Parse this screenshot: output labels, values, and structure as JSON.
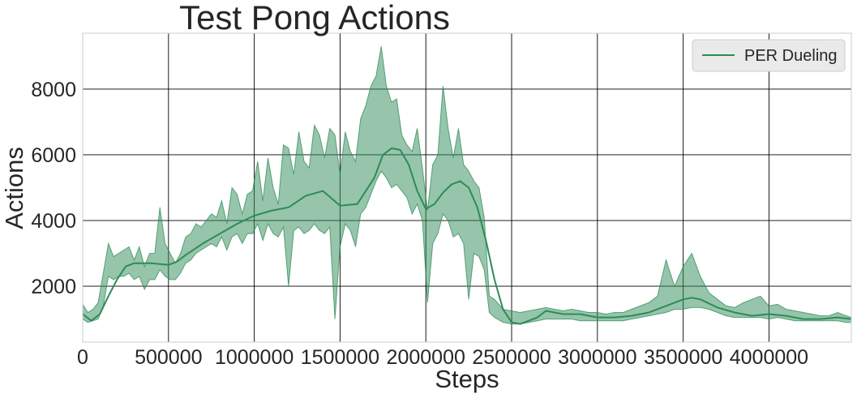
{
  "chart_data": {
    "type": "line",
    "title": "Test Pong Actions",
    "xlabel": "Steps",
    "ylabel": "Actions",
    "xlim": [
      0,
      4480000
    ],
    "ylim": [
      300,
      9700
    ],
    "xticks": [
      0,
      500000,
      1000000,
      1500000,
      2000000,
      2500000,
      3000000,
      3500000,
      4000000
    ],
    "yticks": [
      2000,
      4000,
      6000,
      8000
    ],
    "grid": true,
    "legend": {
      "position": "top-right"
    },
    "series": [
      {
        "name": "PER Dueling",
        "color": "#2e8b57",
        "smoothed": {
          "x": [
            0,
            50000,
            100000,
            150000,
            200000,
            250000,
            300000,
            400000,
            500000,
            550000,
            600000,
            700000,
            800000,
            900000,
            1000000,
            1100000,
            1200000,
            1300000,
            1400000,
            1500000,
            1600000,
            1700000,
            1750000,
            1800000,
            1850000,
            1900000,
            1950000,
            2000000,
            2050000,
            2100000,
            2150000,
            2200000,
            2250000,
            2300000,
            2350000,
            2400000,
            2450000,
            2500000,
            2550000,
            2600000,
            2650000,
            2700000,
            2800000,
            2900000,
            3000000,
            3100000,
            3200000,
            3300000,
            3400000,
            3500000,
            3550000,
            3600000,
            3700000,
            3800000,
            3900000,
            4000000,
            4100000,
            4200000,
            4300000,
            4400000,
            4480000
          ],
          "y": [
            1150,
            950,
            1150,
            1700,
            2200,
            2600,
            2700,
            2700,
            2650,
            2750,
            2950,
            3300,
            3600,
            3900,
            4150,
            4300,
            4400,
            4750,
            4900,
            4450,
            4500,
            5300,
            6000,
            6200,
            6150,
            5700,
            4900,
            4350,
            4500,
            4850,
            5100,
            5200,
            5000,
            4400,
            3400,
            2200,
            1300,
            900,
            850,
            950,
            1050,
            1250,
            1150,
            1150,
            1050,
            1050,
            1100,
            1200,
            1400,
            1600,
            1650,
            1600,
            1350,
            1200,
            1100,
            1150,
            1100,
            1000,
            1000,
            1050,
            1000
          ]
        },
        "band": {
          "x": [
            0,
            30000,
            60000,
            90000,
            120000,
            150000,
            180000,
            210000,
            240000,
            270000,
            300000,
            330000,
            360000,
            390000,
            420000,
            450000,
            480000,
            510000,
            540000,
            570000,
            600000,
            630000,
            660000,
            690000,
            720000,
            750000,
            780000,
            810000,
            840000,
            870000,
            900000,
            930000,
            960000,
            990000,
            1020000,
            1050000,
            1080000,
            1110000,
            1140000,
            1170000,
            1200000,
            1230000,
            1260000,
            1290000,
            1320000,
            1350000,
            1380000,
            1410000,
            1440000,
            1470000,
            1500000,
            1530000,
            1560000,
            1590000,
            1620000,
            1650000,
            1680000,
            1710000,
            1740000,
            1770000,
            1800000,
            1830000,
            1860000,
            1890000,
            1920000,
            1950000,
            1980000,
            2010000,
            2040000,
            2070000,
            2100000,
            2130000,
            2160000,
            2190000,
            2220000,
            2250000,
            2280000,
            2310000,
            2340000,
            2370000,
            2400000,
            2450000,
            2500000,
            2550000,
            2600000,
            2650000,
            2700000,
            2750000,
            2800000,
            2850000,
            2900000,
            2950000,
            3000000,
            3050000,
            3100000,
            3150000,
            3200000,
            3250000,
            3300000,
            3350000,
            3400000,
            3450000,
            3500000,
            3550000,
            3600000,
            3650000,
            3700000,
            3750000,
            3800000,
            3850000,
            3900000,
            3950000,
            4000000,
            4050000,
            4100000,
            4150000,
            4200000,
            4250000,
            4300000,
            4350000,
            4400000,
            4450000,
            4480000
          ],
          "upper": [
            1450,
            1200,
            1300,
            1500,
            2400,
            3300,
            2900,
            3000,
            3100,
            3200,
            2800,
            3200,
            2600,
            3000,
            3000,
            4400,
            3300,
            3000,
            2700,
            3000,
            3500,
            3600,
            3900,
            3800,
            4000,
            4200,
            4100,
            4600,
            3900,
            5000,
            4800,
            4200,
            4800,
            4900,
            5800,
            4600,
            5900,
            5000,
            4500,
            6300,
            6200,
            5400,
            6700,
            5800,
            5600,
            6900,
            6600,
            5900,
            6800,
            6600,
            5400,
            6700,
            6100,
            5800,
            7100,
            7500,
            8100,
            8400,
            9300,
            8100,
            7600,
            7700,
            6600,
            6300,
            6100,
            6800,
            5600,
            4300,
            5700,
            6000,
            8100,
            6800,
            5900,
            6800,
            5700,
            5500,
            5200,
            5000,
            4100,
            1700,
            1600,
            1300,
            1250,
            1200,
            1250,
            1300,
            1350,
            1300,
            1250,
            1300,
            1250,
            1200,
            1200,
            1150,
            1200,
            1200,
            1300,
            1400,
            1500,
            1700,
            2800,
            2000,
            2600,
            3000,
            2300,
            1800,
            1600,
            1400,
            1350,
            1500,
            1600,
            1700,
            1400,
            1450,
            1300,
            1250,
            1200,
            1150,
            1100,
            1100,
            1200,
            1100,
            1050
          ],
          "lower": [
            1000,
            900,
            950,
            1000,
            1400,
            2300,
            2200,
            2300,
            2300,
            2400,
            2200,
            2300,
            1900,
            2200,
            2200,
            2500,
            2300,
            2200,
            2200,
            2400,
            2700,
            2800,
            3000,
            3100,
            3200,
            3300,
            3200,
            3500,
            3100,
            3500,
            3600,
            3300,
            3600,
            3600,
            3900,
            3400,
            3900,
            3600,
            3500,
            3800,
            2000,
            3700,
            3800,
            3600,
            3700,
            3900,
            3700,
            3600,
            3800,
            1000,
            3200,
            3900,
            3700,
            3200,
            4200,
            4400,
            4800,
            5200,
            5500,
            5300,
            5000,
            5100,
            4900,
            4700,
            4200,
            4500,
            4000,
            1500,
            3300,
            3600,
            4200,
            4000,
            3500,
            3600,
            3300,
            1600,
            3000,
            2900,
            2500,
            1200,
            1050,
            900,
            850,
            850,
            900,
            950,
            1000,
            1000,
            1000,
            1000,
            950,
            950,
            950,
            950,
            950,
            950,
            1000,
            1050,
            1100,
            1150,
            1200,
            1300,
            1300,
            1350,
            1350,
            1300,
            1200,
            1100,
            1050,
            1050,
            1050,
            1050,
            1000,
            1050,
            1000,
            950,
            950,
            950,
            950,
            950,
            950,
            900,
            900
          ]
        }
      }
    ]
  }
}
